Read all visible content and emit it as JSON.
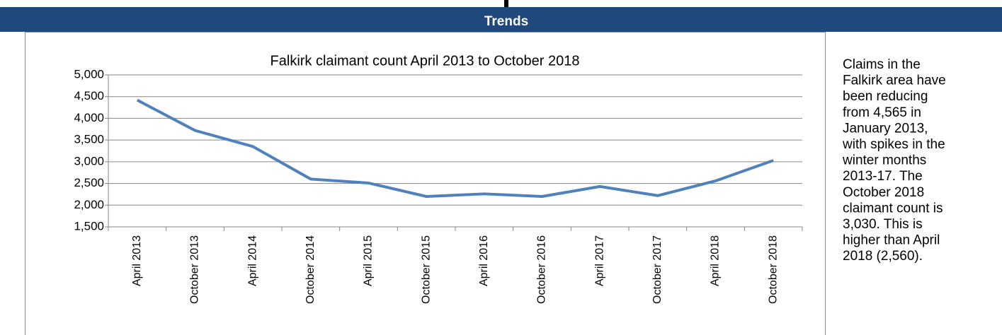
{
  "header": {
    "title": "Trends"
  },
  "chart_data": {
    "type": "line",
    "title": "Falkirk claimant count April 2013 to October 2018",
    "categories": [
      "April 2013",
      "October 2013",
      "April 2014",
      "October 2014",
      "April 2015",
      "October 2015",
      "April 2016",
      "October 2016",
      "April 2017",
      "October 2017",
      "April 2018",
      "October 2018"
    ],
    "series": [
      {
        "name": "Claimant count",
        "color": "#4f81bd",
        "values": [
          4420,
          3720,
          3350,
          2600,
          2510,
          2200,
          2260,
          2200,
          2430,
          2220,
          2560,
          3030
        ]
      }
    ],
    "ylim": [
      1500,
      5000
    ],
    "yticks": [
      {
        "value": 1500,
        "label": "1,500"
      },
      {
        "value": 2000,
        "label": "2,000"
      },
      {
        "value": 2500,
        "label": "2,500"
      },
      {
        "value": 3000,
        "label": "3,000"
      },
      {
        "value": 3500,
        "label": "3,500"
      },
      {
        "value": 4000,
        "label": "4,000"
      },
      {
        "value": 4500,
        "label": "4,500"
      },
      {
        "value": 5000,
        "label": "5,000"
      }
    ],
    "grid": true
  },
  "sidebar": {
    "lines": [
      "Claims in the",
      "Falkirk area have",
      "been reducing",
      "from 4,565 in",
      "January 2013,",
      "with spikes in the",
      "winter months",
      "2013-17.  The",
      "October 2018",
      "claimant count is",
      "3,030.  This is",
      "higher than April",
      "2018 (2,560)."
    ]
  }
}
